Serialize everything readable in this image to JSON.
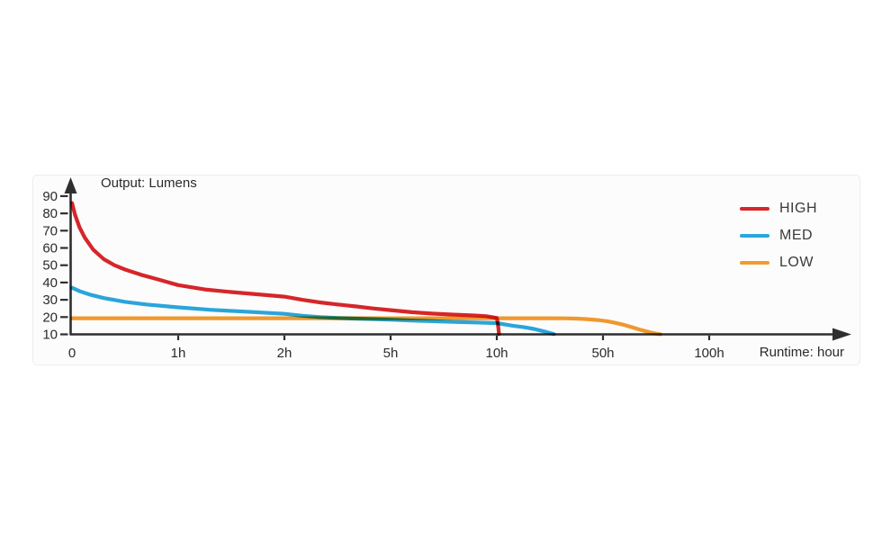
{
  "chart_data": {
    "type": "line",
    "title": "Output: Lumens",
    "xlabel": "Runtime: hour",
    "grid": false,
    "legend_position": "top-right",
    "axis_color": "#2f2f2f",
    "x_ticks": {
      "values": [
        0,
        1,
        2,
        5,
        10,
        50,
        100
      ],
      "labels": [
        "0",
        "1h",
        "2h",
        "5h",
        "10h",
        "50h",
        "100h"
      ]
    },
    "y_ticks": [
      10,
      20,
      30,
      40,
      50,
      60,
      70,
      80,
      90
    ],
    "ylim": [
      10,
      95
    ],
    "x_scale": "piecewise-equal-segments",
    "blend_mode": "multiply",
    "series": [
      {
        "name": "HIGH",
        "color": "#d8262a",
        "points": [
          [
            0,
            86
          ],
          [
            0.03,
            79
          ],
          [
            0.07,
            72
          ],
          [
            0.12,
            66
          ],
          [
            0.2,
            59
          ],
          [
            0.3,
            53.5
          ],
          [
            0.4,
            50
          ],
          [
            0.5,
            47.5
          ],
          [
            0.65,
            44.5
          ],
          [
            0.8,
            42
          ],
          [
            1,
            38.5
          ],
          [
            1.25,
            36
          ],
          [
            1.5,
            34.5
          ],
          [
            2,
            31.8
          ],
          [
            2.5,
            30
          ],
          [
            3,
            28.5
          ],
          [
            3.5,
            27.3
          ],
          [
            4,
            26.2
          ],
          [
            4.5,
            25
          ],
          [
            5,
            24
          ],
          [
            6,
            22.8
          ],
          [
            7,
            22
          ],
          [
            8,
            21.4
          ],
          [
            9,
            20.9
          ],
          [
            9.5,
            20.5
          ],
          [
            10,
            19.5
          ],
          [
            10.3,
            17
          ],
          [
            10.6,
            13.5
          ],
          [
            10.8,
            10.2
          ]
        ]
      },
      {
        "name": "MED",
        "color": "#2aa7de",
        "points": [
          [
            0,
            37
          ],
          [
            0.08,
            34.8
          ],
          [
            0.18,
            32.8
          ],
          [
            0.3,
            31
          ],
          [
            0.5,
            28.8
          ],
          [
            0.7,
            27.3
          ],
          [
            1,
            25.6
          ],
          [
            1.3,
            24.2
          ],
          [
            1.7,
            22.9
          ],
          [
            2,
            21.9
          ],
          [
            2.5,
            20.8
          ],
          [
            3,
            20
          ],
          [
            3.5,
            19.5
          ],
          [
            4,
            19.1
          ],
          [
            5,
            18.5
          ],
          [
            6,
            18
          ],
          [
            7,
            17.6
          ],
          [
            8,
            17.2
          ],
          [
            9,
            16.9
          ],
          [
            10,
            16.5
          ],
          [
            12,
            16
          ],
          [
            14,
            15.5
          ],
          [
            16,
            15
          ],
          [
            18,
            14.6
          ],
          [
            20,
            14.2
          ],
          [
            22,
            13.7
          ],
          [
            24,
            13.1
          ],
          [
            26,
            12.4
          ],
          [
            28,
            11.6
          ],
          [
            30,
            10.8
          ],
          [
            31.5,
            10.15
          ]
        ]
      },
      {
        "name": "LOW",
        "color": "#f29a2e",
        "points": [
          [
            0,
            19.3
          ],
          [
            5,
            19.3
          ],
          [
            10,
            19.3
          ],
          [
            15,
            19.3
          ],
          [
            20,
            19.3
          ],
          [
            25,
            19.3
          ],
          [
            30,
            19.3
          ],
          [
            35,
            19.25
          ],
          [
            40,
            19.1
          ],
          [
            44,
            18.8
          ],
          [
            48,
            18.3
          ],
          [
            52,
            17.6
          ],
          [
            56,
            16.6
          ],
          [
            60,
            15.4
          ],
          [
            64,
            14
          ],
          [
            68,
            12.5
          ],
          [
            72,
            11.2
          ],
          [
            75,
            10.4
          ],
          [
            77,
            10.05
          ]
        ]
      }
    ]
  }
}
